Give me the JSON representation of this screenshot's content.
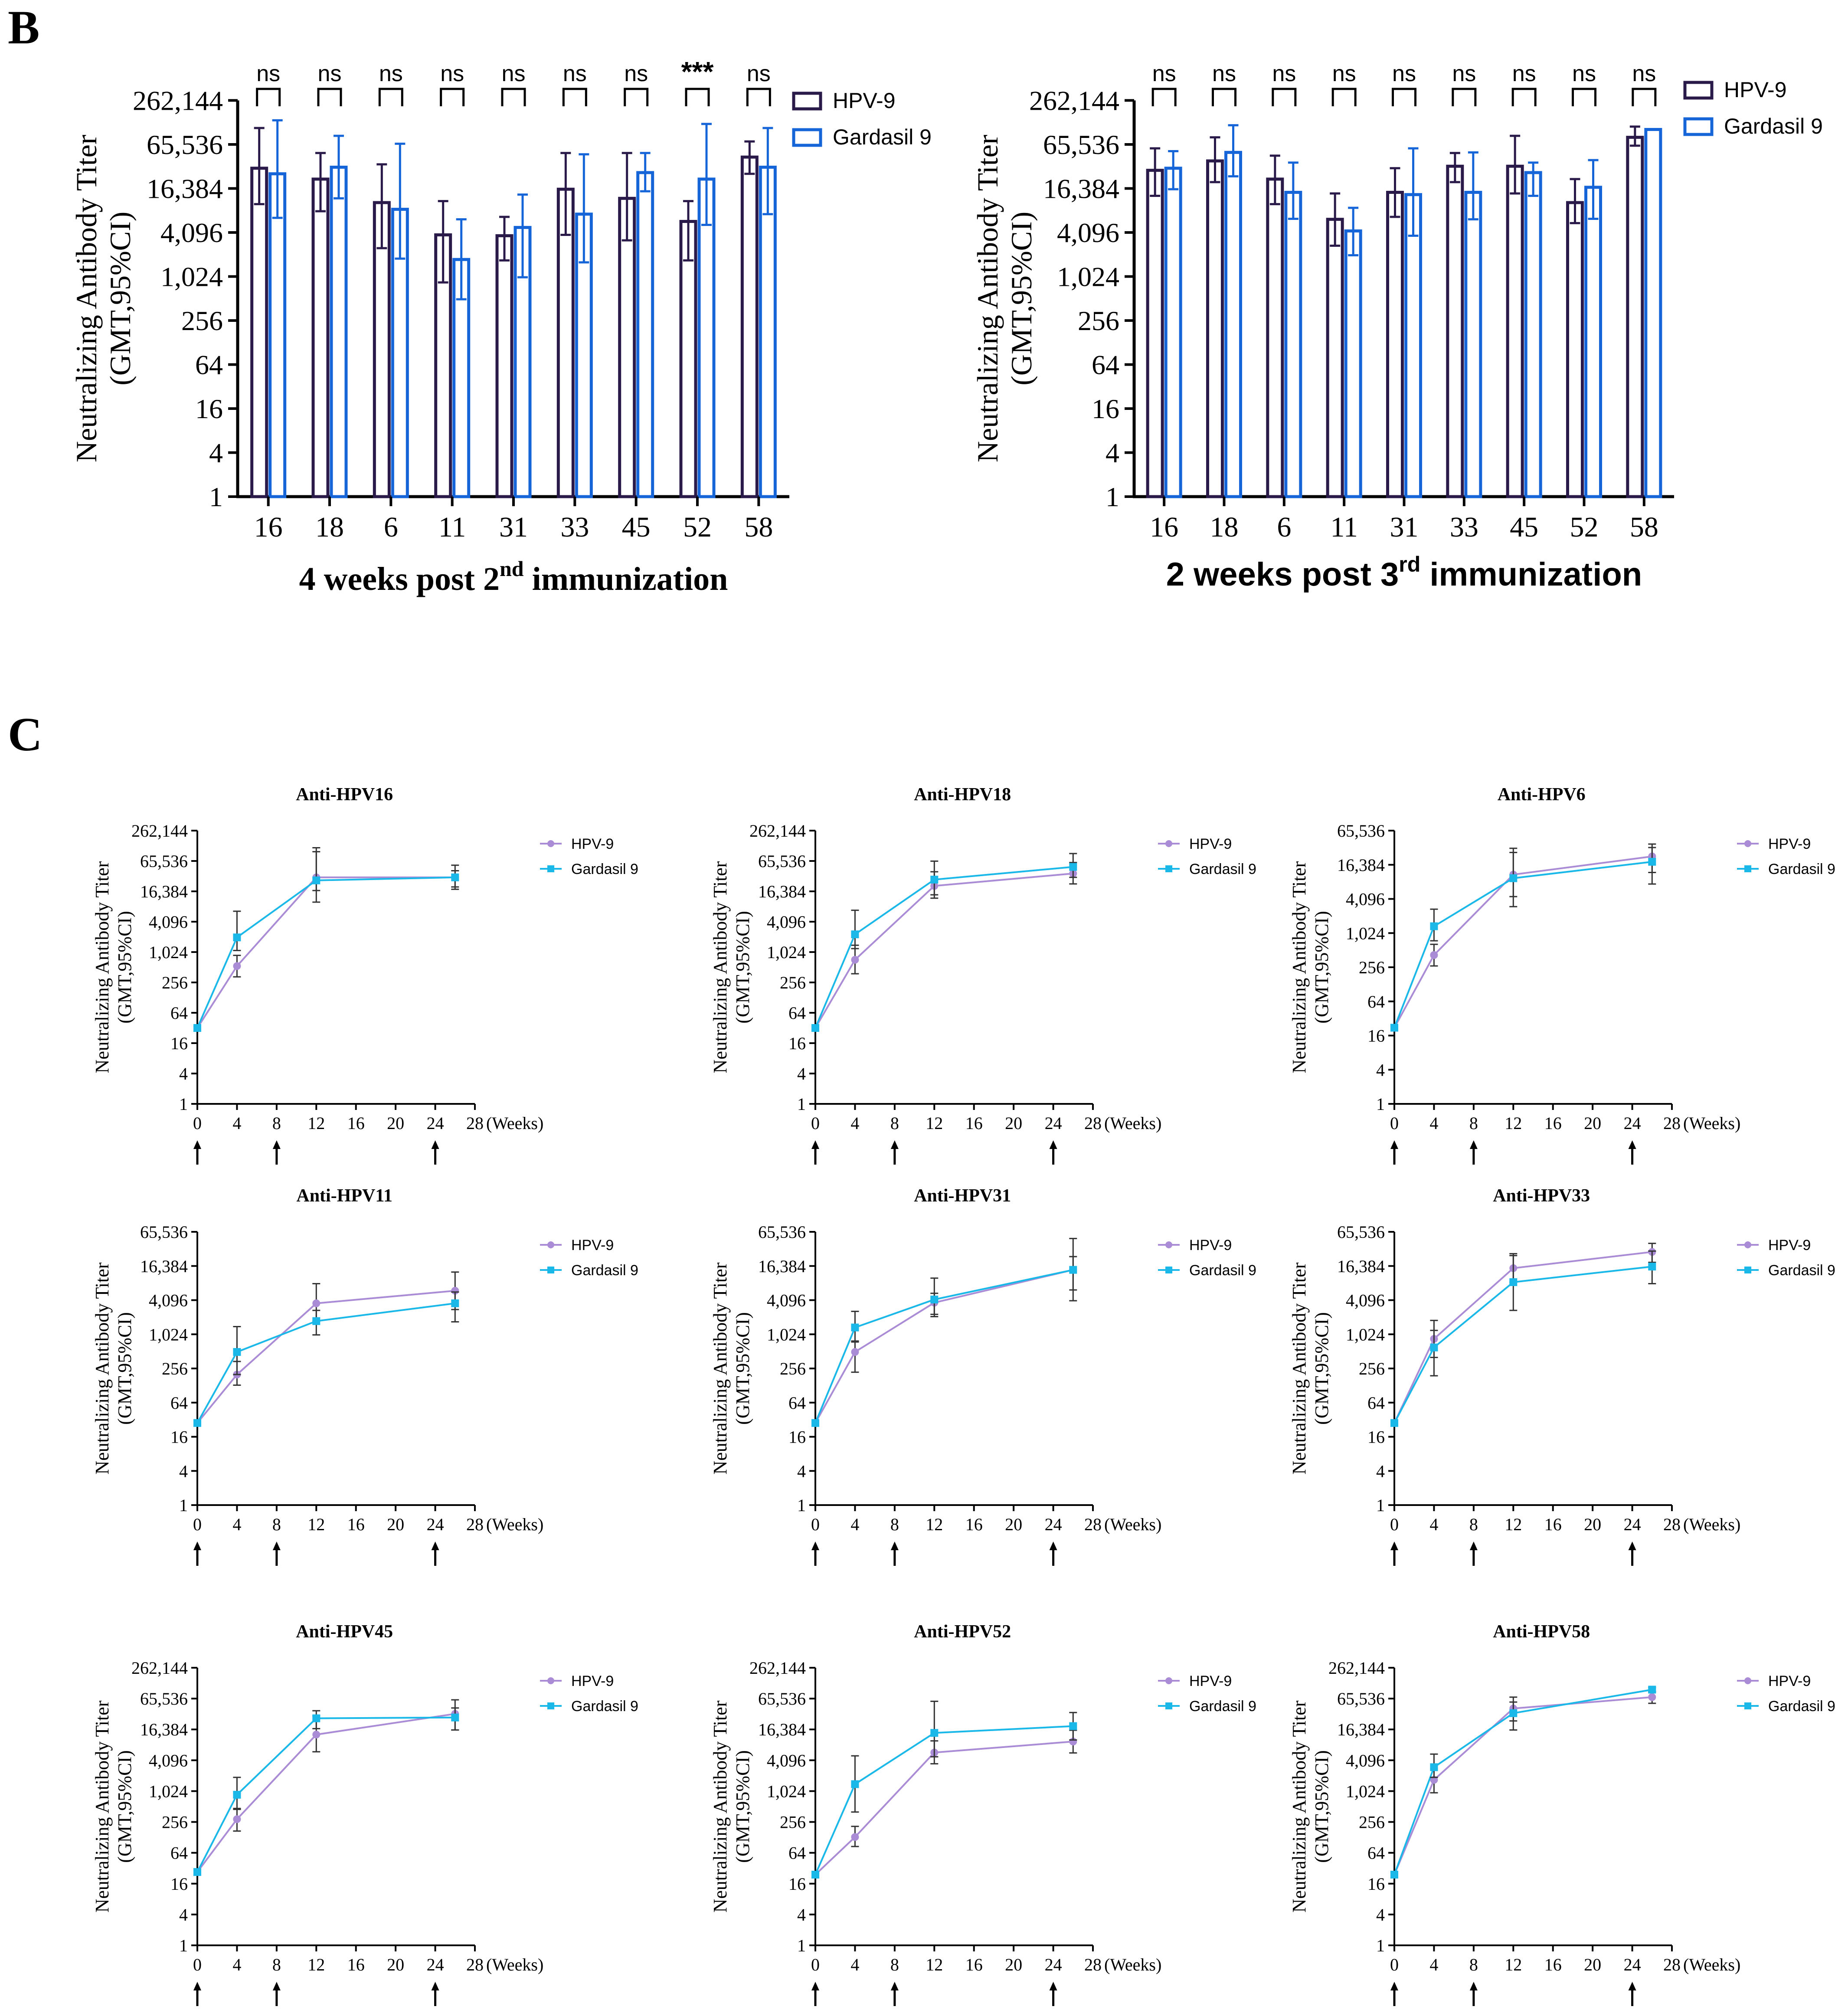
{
  "colors": {
    "hpv9_bar": "#2a1a4a",
    "gardasil_bar": "#1565d8",
    "hpv9_line": "#a98bd6",
    "gardasil_line": "#19b8e8",
    "axis": "#000000"
  },
  "tick_labels": {
    "panel_b": [
      "1",
      "4",
      "16",
      "64",
      "256",
      "1,024",
      "4,096",
      "16,384",
      "65,536",
      "262,144"
    ],
    "small_full": [
      "1",
      "4",
      "16",
      "64",
      "256",
      "1,024",
      "4,096",
      "16,384",
      "65,536",
      "262,144"
    ],
    "small_short": [
      "1",
      "4",
      "16",
      "64",
      "256",
      "1,024",
      "4,096",
      "16,384",
      "65,536"
    ],
    "weeks": [
      "0",
      "4",
      "8",
      "12",
      "16",
      "20",
      "24",
      "28"
    ]
  },
  "chart_data": [
    {
      "id": "B1",
      "type": "bar",
      "panel_label": "B",
      "title_main": "4 weeks post 2",
      "title_sup": "nd",
      "title_end": " immunization",
      "ylabel1": "Neutralizing Antibody Titer",
      "ylabel2": "(GMT,95%CI)",
      "yscale": "log4",
      "ylim": [
        1,
        262144
      ],
      "categories": [
        "16",
        "18",
        "6",
        "11",
        "31",
        "33",
        "45",
        "52",
        "58"
      ],
      "significance": [
        "ns",
        "ns",
        "ns",
        "ns",
        "ns",
        "ns",
        "ns",
        "***",
        "ns"
      ],
      "series": [
        {
          "name": "HPV-9",
          "color_key": "hpv9_bar",
          "values": [
            31000,
            22000,
            10500,
            3800,
            3700,
            16000,
            12000,
            5800,
            44000
          ],
          "lower": [
            10000,
            8000,
            2500,
            850,
            1700,
            3800,
            3200,
            1700,
            26000
          ],
          "upper": [
            110000,
            50000,
            35000,
            11000,
            6700,
            50000,
            50000,
            11000,
            72000
          ]
        },
        {
          "name": "Gardasil 9",
          "color_key": "gardasil_bar",
          "values": [
            26000,
            32000,
            8500,
            1750,
            4800,
            7300,
            27000,
            22000,
            32000
          ],
          "lower": [
            6500,
            12000,
            1800,
            500,
            1000,
            1600,
            15000,
            5200,
            7300
          ],
          "upper": [
            140000,
            86000,
            67000,
            6200,
            13500,
            48000,
            50000,
            125000,
            110000
          ]
        }
      ]
    },
    {
      "id": "B2",
      "type": "bar",
      "title_main": "2 weeks post 3",
      "title_sup": "rd",
      "title_end": " immunization",
      "ylabel1": "Neutralizing Antibody Titer",
      "ylabel2": "(GMT,95%CI)",
      "yscale": "log4",
      "ylim": [
        1,
        262144
      ],
      "categories": [
        "16",
        "18",
        "6",
        "11",
        "31",
        "33",
        "45",
        "52",
        "58"
      ],
      "significance": [
        "ns",
        "ns",
        "ns",
        "ns",
        "ns",
        "ns",
        "ns",
        "ns",
        "ns"
      ],
      "series": [
        {
          "name": "HPV-9",
          "color_key": "hpv9_bar",
          "values": [
            29000,
            39000,
            22000,
            6200,
            14500,
            33000,
            33000,
            10500,
            82000
          ],
          "lower": [
            13000,
            20000,
            10000,
            2700,
            6700,
            20000,
            14000,
            5500,
            63000
          ],
          "upper": [
            58000,
            82000,
            46000,
            14000,
            31000,
            50000,
            86000,
            22000,
            115000
          ]
        },
        {
          "name": "Gardasil 9",
          "color_key": "gardasil_bar",
          "values": [
            31000,
            51000,
            14500,
            4300,
            13500,
            14500,
            27000,
            17000,
            105000
          ],
          "lower": [
            16000,
            24000,
            6300,
            2000,
            3700,
            6200,
            13000,
            6300,
            105000
          ],
          "upper": [
            53000,
            120000,
            37000,
            8900,
            58000,
            51000,
            37000,
            40000,
            105000
          ]
        }
      ]
    },
    {
      "id": "C16",
      "type": "line",
      "panel_label": "C",
      "title": "Anti-HPV16",
      "ytop": 262144,
      "x": [
        0,
        4,
        12,
        26
      ],
      "xlabel": "(Weeks)",
      "arrows": [
        0,
        8,
        24
      ],
      "ylabel1": "Neutralizing Antibody Titer",
      "ylabel2": "(GMT,95%CI)",
      "series": [
        {
          "name": "HPV-9",
          "color_key": "hpv9_line",
          "marker": "circle",
          "values": [
            32,
            540,
            31000,
            31000
          ],
          "lower": [
            32,
            330,
            10000,
            18000
          ],
          "upper": [
            32,
            880,
            100000,
            54000
          ]
        },
        {
          "name": "Gardasil 9",
          "color_key": "gardasil_line",
          "marker": "square",
          "values": [
            32,
            2000,
            27000,
            31000
          ],
          "lower": [
            32,
            1100,
            17000,
            20000
          ],
          "upper": [
            32,
            6600,
            120000,
            42000
          ]
        }
      ]
    },
    {
      "id": "C18",
      "type": "line",
      "title": "Anti-HPV18",
      "ytop": 262144,
      "x": [
        0,
        4,
        12,
        26
      ],
      "xlabel": "(Weeks)",
      "arrows": [
        0,
        8,
        24
      ],
      "ylabel1": "Neutralizing Antibody Titer",
      "ylabel2": "(GMT,95%CI)",
      "series": [
        {
          "name": "HPV-9",
          "color_key": "hpv9_line",
          "marker": "circle",
          "values": [
            32,
            720,
            21000,
            37000
          ],
          "lower": [
            32,
            380,
            12000,
            23000
          ],
          "upper": [
            32,
            1400,
            40000,
            61000
          ]
        },
        {
          "name": "Gardasil 9",
          "color_key": "gardasil_line",
          "marker": "square",
          "values": [
            32,
            2300,
            28000,
            50000
          ],
          "lower": [
            32,
            1200,
            14000,
            31000
          ],
          "upper": [
            32,
            6900,
            65000,
            92000
          ]
        }
      ]
    },
    {
      "id": "C6",
      "type": "line",
      "title": "Anti-HPV6",
      "ytop": 65536,
      "x": [
        0,
        4,
        12,
        26
      ],
      "xlabel": "(Weeks)",
      "arrows": [
        0,
        8,
        24
      ],
      "ylabel1": "Neutralizing Antibody Titer",
      "ylabel2": "(GMT,95%CI)",
      "series": [
        {
          "name": "HPV-9",
          "color_key": "hpv9_line",
          "marker": "circle",
          "values": [
            22,
            420,
            11000,
            23000
          ],
          "lower": [
            22,
            270,
            4500,
            12000
          ],
          "upper": [
            22,
            650,
            27000,
            38000
          ]
        },
        {
          "name": "Gardasil 9",
          "color_key": "gardasil_line",
          "marker": "square",
          "values": [
            22,
            1350,
            9500,
            18500
          ],
          "lower": [
            22,
            750,
            3000,
            7500
          ],
          "upper": [
            22,
            2700,
            32000,
            33000
          ]
        }
      ]
    },
    {
      "id": "C11",
      "type": "line",
      "title": "Anti-HPV11",
      "ytop": 65536,
      "x": [
        0,
        4,
        12,
        26
      ],
      "xlabel": "(Weeks)",
      "arrows": [
        0,
        8,
        24
      ],
      "ylabel1": "Neutralizing Antibody Titer",
      "ylabel2": "(GMT,95%CI)",
      "series": [
        {
          "name": "HPV-9",
          "color_key": "hpv9_line",
          "marker": "circle",
          "values": [
            28,
            200,
            3600,
            6000
          ],
          "lower": [
            28,
            130,
            1750,
            2800
          ],
          "upper": [
            28,
            340,
            8000,
            12800
          ]
        },
        {
          "name": "Gardasil 9",
          "color_key": "gardasil_line",
          "marker": "square",
          "values": [
            28,
            500,
            1750,
            3600
          ],
          "lower": [
            28,
            200,
            1000,
            1700
          ],
          "upper": [
            28,
            1400,
            2700,
            5700
          ]
        }
      ]
    },
    {
      "id": "C31",
      "type": "line",
      "title": "Anti-HPV31",
      "ytop": 65536,
      "x": [
        0,
        4,
        12,
        26
      ],
      "xlabel": "(Weeks)",
      "arrows": [
        0,
        8,
        24
      ],
      "ylabel1": "Neutralizing Antibody Titer",
      "ylabel2": "(GMT,95%CI)",
      "series": [
        {
          "name": "HPV-9",
          "color_key": "hpv9_line",
          "marker": "circle",
          "values": [
            28,
            500,
            3700,
            14000
          ],
          "lower": [
            28,
            220,
            2100,
            6200
          ],
          "upper": [
            28,
            780,
            5400,
            24000
          ]
        },
        {
          "name": "Gardasil 9",
          "color_key": "gardasil_line",
          "marker": "square",
          "values": [
            28,
            1350,
            4200,
            14000
          ],
          "lower": [
            28,
            750,
            2300,
            4000
          ],
          "upper": [
            28,
            2600,
            10000,
            50000
          ]
        }
      ]
    },
    {
      "id": "C33",
      "type": "line",
      "title": "Anti-HPV33",
      "ytop": 65536,
      "x": [
        0,
        4,
        12,
        26
      ],
      "xlabel": "(Weeks)",
      "arrows": [
        0,
        8,
        24
      ],
      "ylabel1": "Neutralizing Antibody Titer",
      "ylabel2": "(GMT,95%CI)",
      "series": [
        {
          "name": "HPV-9",
          "color_key": "hpv9_line",
          "marker": "circle",
          "values": [
            28,
            850,
            15000,
            29000
          ],
          "lower": [
            28,
            400,
            8500,
            19000
          ],
          "upper": [
            28,
            1800,
            27000,
            41000
          ]
        },
        {
          "name": "Gardasil 9",
          "color_key": "gardasil_line",
          "marker": "square",
          "values": [
            28,
            600,
            8500,
            16000
          ],
          "lower": [
            28,
            190,
            2700,
            8000
          ],
          "upper": [
            28,
            1200,
            25000,
            30000
          ]
        }
      ]
    },
    {
      "id": "C45",
      "type": "line",
      "title": "Anti-HPV45",
      "ytop": 262144,
      "x": [
        0,
        4,
        12,
        26
      ],
      "xlabel": "(Weeks)",
      "arrows": [
        0,
        8,
        24
      ],
      "ylabel1": "Neutralizing Antibody Titer",
      "ylabel2": "(GMT,95%CI)",
      "series": [
        {
          "name": "HPV-9",
          "color_key": "hpv9_line",
          "marker": "circle",
          "values": [
            27,
            290,
            13000,
            33000
          ],
          "lower": [
            27,
            170,
            6000,
            16000
          ],
          "upper": [
            27,
            470,
            30000,
            62000
          ]
        },
        {
          "name": "Gardasil 9",
          "color_key": "gardasil_line",
          "marker": "square",
          "values": [
            27,
            870,
            27000,
            28000
          ],
          "lower": [
            27,
            450,
            17000,
            16000
          ],
          "upper": [
            27,
            1900,
            38000,
            43000
          ]
        }
      ]
    },
    {
      "id": "C52",
      "type": "line",
      "title": "Anti-HPV52",
      "ytop": 262144,
      "x": [
        0,
        4,
        12,
        26
      ],
      "xlabel": "(Weeks)",
      "arrows": [
        0,
        8,
        24
      ],
      "ylabel1": "Neutralizing Antibody Titer",
      "ylabel2": "(GMT,95%CI)",
      "series": [
        {
          "name": "HPV-9",
          "color_key": "hpv9_line",
          "marker": "circle",
          "values": [
            24,
            130,
            5800,
            9500
          ],
          "lower": [
            24,
            85,
            3500,
            5700
          ],
          "upper": [
            24,
            210,
            9800,
            15800
          ]
        },
        {
          "name": "Gardasil 9",
          "color_key": "gardasil_line",
          "marker": "square",
          "values": [
            24,
            1400,
            14000,
            19000
          ],
          "lower": [
            24,
            400,
            4800,
            10200
          ],
          "upper": [
            24,
            5000,
            58000,
            35000
          ]
        }
      ]
    },
    {
      "id": "C58",
      "type": "line",
      "title": "Anti-HPV58",
      "ytop": 262144,
      "x": [
        0,
        4,
        12,
        26
      ],
      "xlabel": "(Weeks)",
      "arrows": [
        0,
        8,
        24
      ],
      "ylabel1": "Neutralizing Antibody Titer",
      "ylabel2": "(GMT,95%CI)",
      "series": [
        {
          "name": "HPV-9",
          "color_key": "hpv9_line",
          "marker": "circle",
          "values": [
            24,
            1700,
            42000,
            70000
          ],
          "lower": [
            24,
            950,
            24000,
            53000
          ],
          "upper": [
            24,
            2800,
            70000,
            90000
          ]
        },
        {
          "name": "Gardasil 9",
          "color_key": "gardasil_line",
          "marker": "square",
          "values": [
            24,
            3000,
            34000,
            98000
          ],
          "lower": [
            24,
            1900,
            16000,
            88000
          ],
          "upper": [
            24,
            5400,
            56000,
            108000
          ]
        }
      ]
    }
  ]
}
